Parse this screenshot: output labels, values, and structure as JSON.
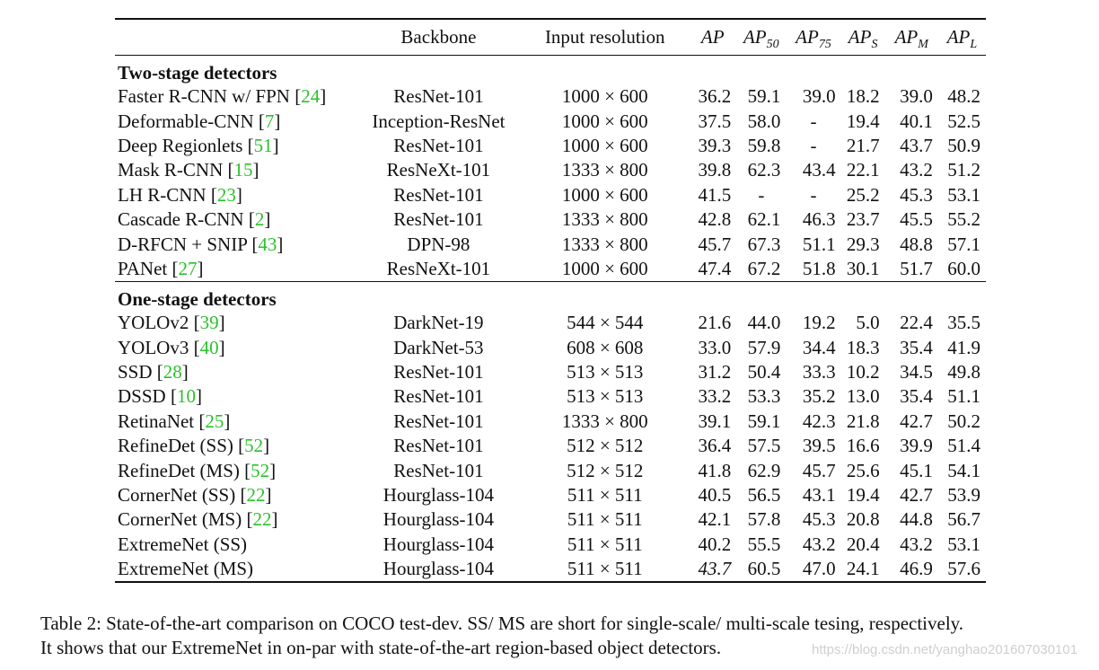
{
  "table": {
    "headers": {
      "method": "",
      "backbone": "Backbone",
      "resolution": "Input resolution",
      "ap": "AP",
      "ap50": {
        "base": "AP",
        "sub": "50"
      },
      "ap75": {
        "base": "AP",
        "sub": "75"
      },
      "aps": {
        "base": "AP",
        "sub": "S"
      },
      "apm": {
        "base": "AP",
        "sub": "M"
      },
      "apl": {
        "base": "AP",
        "sub": "L"
      }
    },
    "groups": [
      {
        "title": "Two-stage detectors",
        "rows": [
          {
            "name": "Faster R-CNN w/ FPN",
            "cite": "24",
            "backbone": "ResNet-101",
            "resolution": "1000 × 600",
            "ap": "36.2",
            "ap50": "59.1",
            "ap75": "39.0",
            "aps": "18.2",
            "apm": "39.0",
            "apl": "48.2"
          },
          {
            "name": "Deformable-CNN",
            "cite": "7",
            "backbone": "Inception-ResNet",
            "resolution": "1000 × 600",
            "ap": "37.5",
            "ap50": "58.0",
            "ap75": "-",
            "aps": "19.4",
            "apm": "40.1",
            "apl": "52.5"
          },
          {
            "name": "Deep Regionlets",
            "cite": "51",
            "backbone": "ResNet-101",
            "resolution": "1000 × 600",
            "ap": "39.3",
            "ap50": "59.8",
            "ap75": "-",
            "aps": "21.7",
            "apm": "43.7",
            "apl": "50.9"
          },
          {
            "name": "Mask R-CNN",
            "cite": "15",
            "backbone": "ResNeXt-101",
            "resolution": "1333 × 800",
            "ap": "39.8",
            "ap50": "62.3",
            "ap75": "43.4",
            "aps": "22.1",
            "apm": "43.2",
            "apl": "51.2"
          },
          {
            "name": "LH R-CNN",
            "cite": "23",
            "backbone": "ResNet-101",
            "resolution": "1000 × 600",
            "ap": "41.5",
            "ap50": "-",
            "ap75": "-",
            "aps": "25.2",
            "apm": "45.3",
            "apl": "53.1"
          },
          {
            "name": "Cascade R-CNN",
            "cite": "2",
            "backbone": "ResNet-101",
            "resolution": "1333 × 800",
            "ap": "42.8",
            "ap50": "62.1",
            "ap75": "46.3",
            "aps": "23.7",
            "apm": "45.5",
            "apl": "55.2"
          },
          {
            "name": "D-RFCN + SNIP",
            "cite": "43",
            "backbone": "DPN-98",
            "resolution": "1333 × 800",
            "ap": "45.7",
            "ap50": "67.3",
            "ap75": "51.1",
            "aps": "29.3",
            "apm": "48.8",
            "apl": "57.1"
          },
          {
            "name": "PANet",
            "cite": "27",
            "backbone": "ResNeXt-101",
            "resolution": "1000 × 600",
            "ap": "47.4",
            "ap50": "67.2",
            "ap75": "51.8",
            "aps": "30.1",
            "apm": "51.7",
            "apl": "60.0"
          }
        ]
      },
      {
        "title": "One-stage detectors",
        "rows": [
          {
            "name": "YOLOv2",
            "cite": "39",
            "backbone": "DarkNet-19",
            "resolution": "544 × 544",
            "ap": "21.6",
            "ap50": "44.0",
            "ap75": "19.2",
            "aps": "5.0",
            "apm": "22.4",
            "apl": "35.5"
          },
          {
            "name": "YOLOv3",
            "cite": "40",
            "backbone": "DarkNet-53",
            "resolution": "608 × 608",
            "ap": "33.0",
            "ap50": "57.9",
            "ap75": "34.4",
            "aps": "18.3",
            "apm": "35.4",
            "apl": "41.9"
          },
          {
            "name": "SSD",
            "cite": "28",
            "backbone": "ResNet-101",
            "resolution": "513 × 513",
            "ap": "31.2",
            "ap50": "50.4",
            "ap75": "33.3",
            "aps": "10.2",
            "apm": "34.5",
            "apl": "49.8"
          },
          {
            "name": "DSSD",
            "cite": "10",
            "backbone": "ResNet-101",
            "resolution": "513 × 513",
            "ap": "33.2",
            "ap50": "53.3",
            "ap75": "35.2",
            "aps": "13.0",
            "apm": "35.4",
            "apl": "51.1"
          },
          {
            "name": "RetinaNet",
            "cite": "25",
            "backbone": "ResNet-101",
            "resolution": "1333 × 800",
            "ap": "39.1",
            "ap50": "59.1",
            "ap75": "42.3",
            "aps": "21.8",
            "apm": "42.7",
            "apl": "50.2"
          },
          {
            "name": "RefineDet (SS)",
            "cite": "52",
            "backbone": "ResNet-101",
            "resolution": "512 × 512",
            "ap": "36.4",
            "ap50": "57.5",
            "ap75": "39.5",
            "aps": "16.6",
            "apm": "39.9",
            "apl": "51.4"
          },
          {
            "name": "RefineDet (MS)",
            "cite": "52",
            "backbone": "ResNet-101",
            "resolution": "512 × 512",
            "ap": "41.8",
            "ap50": "62.9",
            "ap75": "45.7",
            "aps": "25.6",
            "apm": "45.1",
            "apl": "54.1"
          },
          {
            "name": "CornerNet (SS)",
            "cite": "22",
            "backbone": "Hourglass-104",
            "resolution": "511 × 511",
            "ap": "40.5",
            "ap50": "56.5",
            "ap75": "43.1",
            "aps": "19.4",
            "apm": "42.7",
            "apl": "53.9"
          },
          {
            "name": "CornerNet (MS)",
            "cite": "22",
            "backbone": "Hourglass-104",
            "resolution": "511 × 511",
            "ap": "42.1",
            "ap50": "57.8",
            "ap75": "45.3",
            "aps": "20.8",
            "apm": "44.8",
            "apl": "56.7"
          },
          {
            "name": "ExtremeNet (SS)",
            "cite": "",
            "backbone": "Hourglass-104",
            "resolution": "511 × 511",
            "ap": "40.2",
            "ap50": "55.5",
            "ap75": "43.2",
            "aps": "20.4",
            "apm": "43.2",
            "apl": "53.1"
          },
          {
            "name": "ExtremeNet (MS)",
            "cite": "",
            "backbone": "Hourglass-104",
            "resolution": "511 × 511",
            "ap": "43.7",
            "ap_italic": true,
            "ap50": "60.5",
            "ap75": "47.0",
            "aps": "24.1",
            "apm": "46.9",
            "apl": "57.6"
          }
        ]
      }
    ]
  },
  "caption": {
    "line1": "Table 2: State-of-the-art comparison on COCO test-dev. SS/ MS are short for single-scale/ multi-scale tesing, respectively.",
    "line2": "It shows that our ExtremeNet in on-par with state-of-the-art region-based object detectors."
  },
  "watermark": "https://blog.csdn.net/yanghao201607030101",
  "colors": {
    "citation": "#2bc12b",
    "text": "#111111",
    "rules": "#111111"
  }
}
